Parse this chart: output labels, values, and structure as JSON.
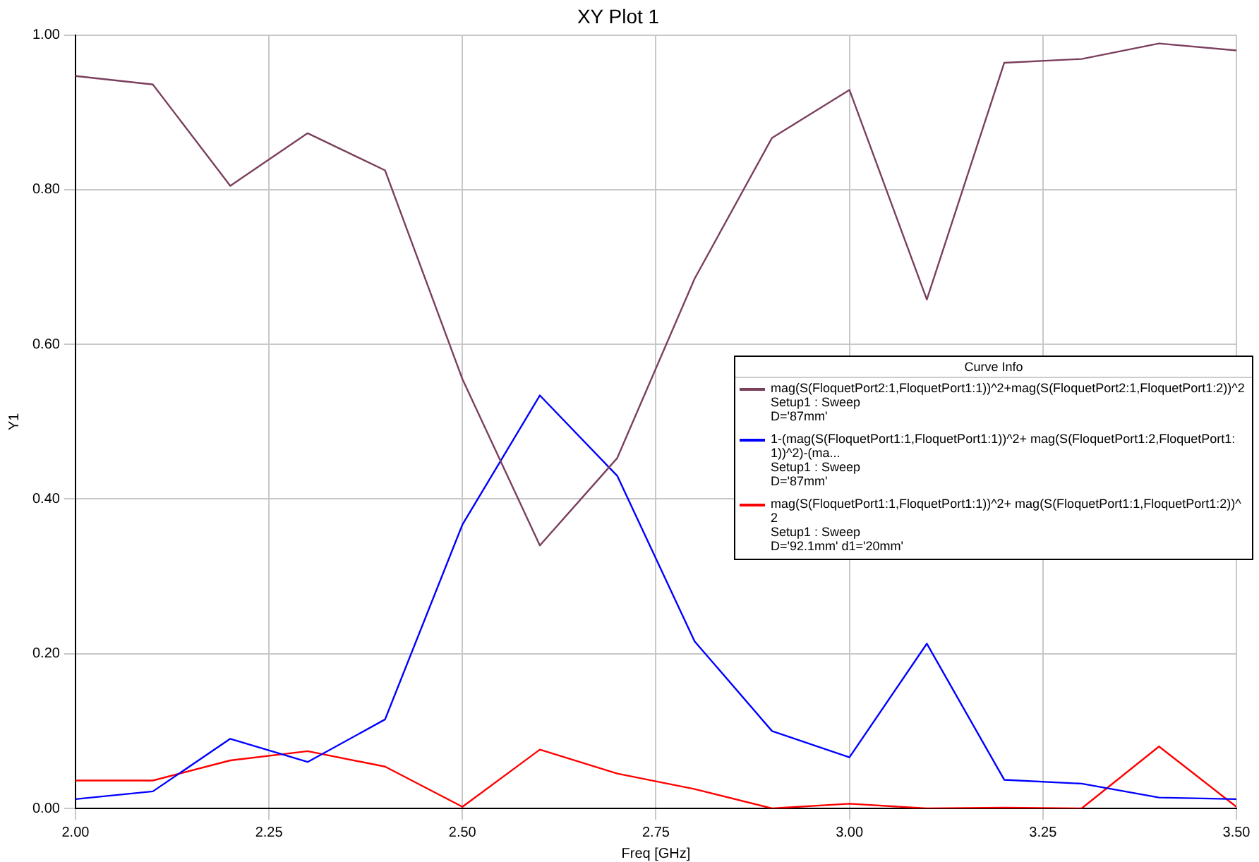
{
  "chart_data": {
    "type": "line",
    "title": "XY Plot 1",
    "xlabel": "Freq [GHz]",
    "ylabel": "Y1",
    "legend_title": "Curve Info",
    "x": [
      2.0,
      2.1,
      2.2,
      2.3,
      2.4,
      2.5,
      2.6,
      2.7,
      2.8,
      2.9,
      3.0,
      3.1,
      3.2,
      3.3,
      3.4,
      3.5
    ],
    "series": [
      {
        "name": "mag(S(FloquetPort2:1,FloquetPort1:1))^2+mag(S(FloquetPort2:1,FloquetPort1:2))^2\nSetup1 : Sweep\nD='87mm'",
        "color": "#7b3f5e",
        "values": [
          0.947,
          0.936,
          0.805,
          0.873,
          0.825,
          0.555,
          0.34,
          0.453,
          0.685,
          0.867,
          0.929,
          0.658,
          0.964,
          0.969,
          0.989,
          0.98
        ]
      },
      {
        "name": "1-(mag(S(FloquetPort1:1,FloquetPort1:1))^2+ mag(S(FloquetPort1:2,FloquetPort1:1))^2)-(ma...\nSetup1 : Sweep\nD='87mm'",
        "color": "#0000ff",
        "values": [
          0.012,
          0.022,
          0.09,
          0.06,
          0.115,
          0.367,
          0.534,
          0.43,
          0.216,
          0.1,
          0.066,
          0.213,
          0.037,
          0.032,
          0.014,
          0.012
        ]
      },
      {
        "name": "mag(S(FloquetPort1:1,FloquetPort1:1))^2+ mag(S(FloquetPort1:1,FloquetPort1:2))^2\nSetup1 : Sweep\nD='92.1mm' d1='20mm'",
        "color": "#ff0000",
        "values": [
          0.036,
          0.036,
          0.062,
          0.074,
          0.054,
          0.002,
          0.076,
          0.045,
          0.025,
          0,
          0.006,
          0,
          0.001,
          0,
          0.08,
          0.002
        ]
      }
    ],
    "xlim": [
      2.0,
      3.5
    ],
    "xticks": [
      {
        "value": 2,
        "label": "2.00"
      },
      {
        "value": 2.25,
        "label": "2.25"
      },
      {
        "value": 2.5,
        "label": "2.50"
      },
      {
        "value": 2.75,
        "label": "2.75"
      },
      {
        "value": 3,
        "label": "3.00"
      },
      {
        "value": 3.25,
        "label": "3.25"
      },
      {
        "value": 3.5,
        "label": "3.50"
      }
    ],
    "ylim": [
      0,
      1
    ],
    "yticks": [
      {
        "value": 0,
        "label": "0.00"
      },
      {
        "value": 0.2,
        "label": "0.20"
      },
      {
        "value": 0.4,
        "label": "0.40"
      },
      {
        "value": 0.6,
        "label": "0.60"
      },
      {
        "value": 0.8,
        "label": "0.80"
      },
      {
        "value": 1,
        "label": "1.00"
      }
    ],
    "grid": true,
    "legend": "right",
    "marker": "none",
    "line_style": "solid"
  }
}
